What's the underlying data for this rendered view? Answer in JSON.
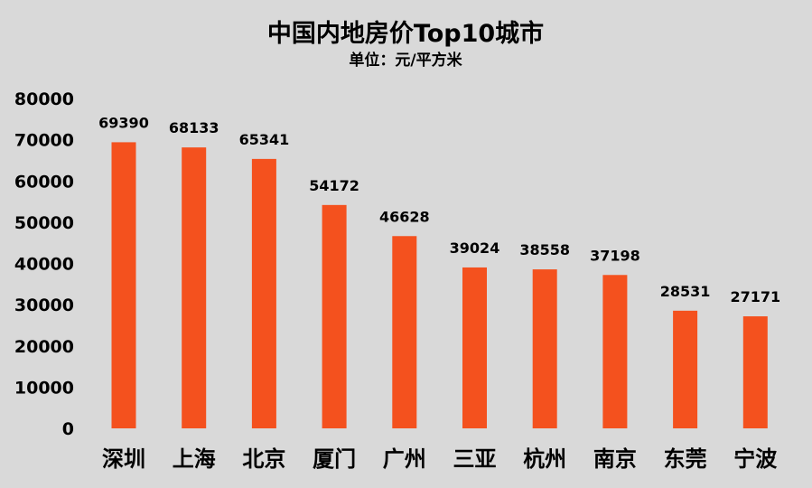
{
  "chart_data": {
    "type": "bar",
    "title": "中国内地房价Top10城市",
    "subtitle": "单位：元/平方米",
    "xlabel": "",
    "ylabel": "",
    "categories": [
      "深圳",
      "上海",
      "北京",
      "厦门",
      "广州",
      "三亚",
      "杭州",
      "南京",
      "东莞",
      "宁波"
    ],
    "values": [
      69390,
      68133,
      65341,
      54172,
      46628,
      39024,
      38558,
      37198,
      28531,
      27171
    ],
    "data_labels": [
      "69390",
      "68133",
      "65341",
      "54172",
      "46628",
      "39024",
      "38558",
      "37198",
      "28531",
      "27171"
    ],
    "ylim": [
      0,
      80000
    ],
    "yticks": [
      0,
      10000,
      20000,
      30000,
      40000,
      50000,
      60000,
      70000,
      80000
    ],
    "ytick_labels": [
      "0",
      "10000",
      "20000",
      "30000",
      "40000",
      "50000",
      "60000",
      "70000",
      "80000"
    ],
    "grid": false,
    "legend": "none",
    "colors": {
      "bar": "#f4511e",
      "background": "#d9d9d9",
      "text": "#000000"
    }
  }
}
